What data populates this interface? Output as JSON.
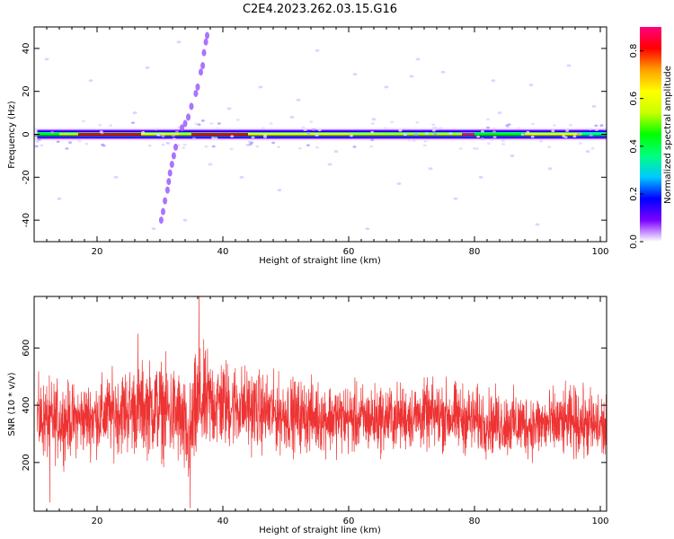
{
  "title": "C2E4.2023.262.03.15.G16",
  "chart_data": [
    {
      "type": "heatmap",
      "xlabel": "Height of straight line (km)",
      "ylabel": "Frequency (Hz)",
      "xlim": [
        10,
        101
      ],
      "ylim": [
        -50,
        50
      ],
      "xticks": [
        20,
        40,
        60,
        80,
        100
      ],
      "yticks": [
        -40,
        -20,
        0,
        20,
        40
      ],
      "colorbar": {
        "label": "Normalized spectral amplitude",
        "range": [
          0.0,
          0.9
        ],
        "ticks": [
          0.0,
          0.2,
          0.4,
          0.6,
          0.8
        ],
        "colors": [
          "#ffffff",
          "#7b00ff",
          "#0000ff",
          "#00c8ff",
          "#00ff80",
          "#00ff00",
          "#c8ff00",
          "#ffff00",
          "#ffa000",
          "#ff0000",
          "#ff0080"
        ]
      },
      "band": {
        "frequency_center_hz": 0,
        "segments": [
          {
            "x0": 10.5,
            "x1": 14,
            "amp": 0.45
          },
          {
            "x0": 14,
            "x1": 17,
            "amp": 0.55
          },
          {
            "x0": 17,
            "x1": 27,
            "amp": 0.85
          },
          {
            "x0": 27,
            "x1": 33,
            "amp": 0.6
          },
          {
            "x0": 33,
            "x1": 35,
            "amp": 0.55
          },
          {
            "x0": 35,
            "x1": 44,
            "amp": 0.8
          },
          {
            "x0": 44,
            "x1": 60,
            "amp": 0.65
          },
          {
            "x0": 60,
            "x1": 78,
            "amp": 0.5
          },
          {
            "x0": 78,
            "x1": 80,
            "amp": 0.9
          },
          {
            "x0": 80,
            "x1": 88,
            "amp": 0.45
          },
          {
            "x0": 88,
            "x1": 97,
            "amp": 0.6
          },
          {
            "x0": 97,
            "x1": 101,
            "amp": 0.4
          }
        ]
      },
      "feature_points": [
        [
          37.5,
          46
        ],
        [
          37.3,
          43
        ],
        [
          37.0,
          38
        ],
        [
          36.8,
          32
        ],
        [
          36.5,
          29
        ],
        [
          36.0,
          22
        ],
        [
          35.7,
          19
        ],
        [
          35.0,
          13
        ],
        [
          34.5,
          8
        ],
        [
          34.0,
          5
        ],
        [
          33.5,
          3
        ],
        [
          32.5,
          -6
        ],
        [
          32.2,
          -10
        ],
        [
          31.9,
          -14
        ],
        [
          31.6,
          -18
        ],
        [
          31.4,
          -22
        ],
        [
          31.2,
          -26
        ],
        [
          30.8,
          -31
        ],
        [
          30.5,
          -36
        ],
        [
          30.2,
          -40
        ]
      ],
      "noise_points": [
        [
          12,
          35
        ],
        [
          14,
          -30
        ],
        [
          19,
          25
        ],
        [
          23,
          -20
        ],
        [
          26,
          10
        ],
        [
          28,
          31
        ],
        [
          29,
          -44
        ],
        [
          33,
          43
        ],
        [
          34,
          -40
        ],
        [
          38,
          -14
        ],
        [
          41,
          12
        ],
        [
          43,
          -20
        ],
        [
          46,
          22
        ],
        [
          49,
          -26
        ],
        [
          52,
          16
        ],
        [
          55,
          39
        ],
        [
          58,
          -8
        ],
        [
          61,
          28
        ],
        [
          63,
          -44
        ],
        [
          66,
          22
        ],
        [
          68,
          -23
        ],
        [
          70,
          27
        ],
        [
          73,
          -16
        ],
        [
          75,
          29
        ],
        [
          77,
          -30
        ],
        [
          81,
          -20
        ],
        [
          84,
          10
        ],
        [
          86,
          -10
        ],
        [
          89,
          23
        ],
        [
          92,
          -16
        ],
        [
          95,
          32
        ],
        [
          98,
          -8
        ],
        [
          99,
          13
        ],
        [
          71,
          35
        ],
        [
          44,
          -5
        ],
        [
          51,
          8
        ],
        [
          57,
          -14
        ],
        [
          64,
          7
        ],
        [
          83,
          25
        ],
        [
          90,
          -42
        ]
      ]
    },
    {
      "type": "line",
      "xlabel": "Height of straight line (km)",
      "ylabel": "SNR (10 * v/v)",
      "xlim": [
        10,
        101
      ],
      "ylim": [
        30,
        780
      ],
      "xticks": [
        20,
        40,
        60,
        80,
        100
      ],
      "yticks": [
        200,
        400,
        600
      ],
      "series": [
        {
          "color": "#ee3333",
          "envelope": [
            {
              "x": 10.5,
              "center": 350,
              "amp": 150
            },
            {
              "x": 13,
              "center": 345,
              "amp": 160
            },
            {
              "x": 17,
              "center": 350,
              "amp": 140
            },
            {
              "x": 20,
              "center": 360,
              "amp": 150
            },
            {
              "x": 24,
              "center": 380,
              "amp": 170
            },
            {
              "x": 27,
              "center": 390,
              "amp": 180
            },
            {
              "x": 30,
              "center": 390,
              "amp": 190
            },
            {
              "x": 33,
              "center": 360,
              "amp": 200
            },
            {
              "x": 34.5,
              "center": 270,
              "amp": 200
            },
            {
              "x": 36,
              "center": 400,
              "amp": 230
            },
            {
              "x": 38,
              "center": 410,
              "amp": 200
            },
            {
              "x": 42,
              "center": 400,
              "amp": 170
            },
            {
              "x": 48,
              "center": 370,
              "amp": 150
            },
            {
              "x": 55,
              "center": 360,
              "amp": 140
            },
            {
              "x": 62,
              "center": 350,
              "amp": 140
            },
            {
              "x": 70,
              "center": 360,
              "amp": 130
            },
            {
              "x": 75,
              "center": 365,
              "amp": 140
            },
            {
              "x": 82,
              "center": 340,
              "amp": 130
            },
            {
              "x": 90,
              "center": 330,
              "amp": 130
            },
            {
              "x": 96,
              "center": 340,
              "amp": 140
            },
            {
              "x": 101,
              "center": 320,
              "amp": 140
            }
          ],
          "peaks": [
            {
              "x": 36.2,
              "y": 780
            },
            {
              "x": 34.8,
              "y": 40
            },
            {
              "x": 26.5,
              "y": 650
            },
            {
              "x": 12.5,
              "y": 60
            }
          ]
        }
      ]
    }
  ]
}
